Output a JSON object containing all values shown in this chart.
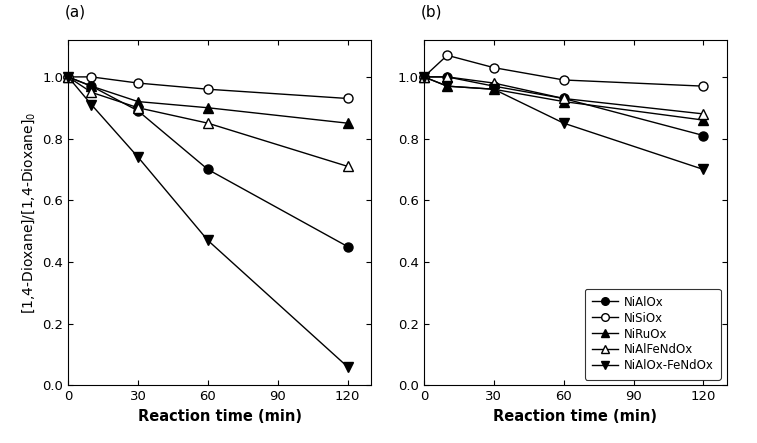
{
  "time": [
    0,
    10,
    30,
    60,
    120
  ],
  "panel_a": {
    "NiAlOx": [
      1.0,
      0.97,
      0.89,
      0.7,
      0.45
    ],
    "NiSiOx": [
      1.0,
      1.0,
      0.98,
      0.96,
      0.93
    ],
    "NiRuOx": [
      1.0,
      0.97,
      0.92,
      0.9,
      0.85
    ],
    "NiAlFeNdOx": [
      1.0,
      0.95,
      0.9,
      0.85,
      0.71
    ],
    "NiAlOx-FeNdOx": [
      1.0,
      0.91,
      0.74,
      0.47,
      0.06
    ]
  },
  "panel_b": {
    "NiAlOx": [
      1.0,
      1.0,
      0.97,
      0.93,
      0.81
    ],
    "NiSiOx": [
      1.0,
      1.07,
      1.03,
      0.99,
      0.97
    ],
    "NiRuOx": [
      1.0,
      0.97,
      0.96,
      0.92,
      0.86
    ],
    "NiAlFeNdOx": [
      1.0,
      1.0,
      0.98,
      0.93,
      0.88
    ],
    "NiAlOx-FeNdOx": [
      1.0,
      0.97,
      0.96,
      0.85,
      0.7
    ]
  },
  "ylabel": "[1,4-Dioxane]/[1,4-Dioxane]$_0$",
  "xlabel": "Reaction time (min)",
  "panel_labels": [
    "(a)",
    "(b)"
  ],
  "legend_labels": [
    "NiAlOx",
    "NiSiOx",
    "NiRuOx",
    "NiAlFeNdOx",
    "NiAlOx-FeNdOx"
  ],
  "xticks": [
    0,
    30,
    60,
    90,
    120
  ],
  "xlim": [
    0,
    130
  ],
  "ylim": [
    0.0,
    1.12
  ],
  "yticks": [
    0.0,
    0.2,
    0.4,
    0.6,
    0.8,
    1.0
  ]
}
